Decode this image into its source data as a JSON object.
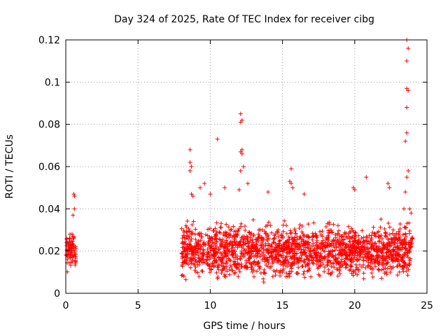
{
  "chart_data": {
    "type": "scatter",
    "title": "Day 324 of 2025, Rate Of TEC Index for receiver cibg",
    "xlabel": "GPS time / hours",
    "ylabel": "ROTI / TECUs",
    "xlim": [
      0,
      25
    ],
    "ylim": [
      0,
      0.12
    ],
    "x_ticks": [
      "0",
      "5",
      "10",
      "15",
      "20",
      "25"
    ],
    "y_ticks": [
      "0",
      "0.02",
      "0.04",
      "0.06",
      "0.08",
      "0.1",
      "0.12"
    ],
    "grid": true,
    "marker": "+",
    "color": "#ff0000",
    "density_segments": [
      {
        "x_start": 0.0,
        "x_end": 0.7,
        "y_min": 0.009,
        "y_max": 0.03
      },
      {
        "x_start": 8.0,
        "x_end": 24.0,
        "y_min": 0.004,
        "y_max": 0.035
      }
    ],
    "outliers": [
      [
        0.55,
        0.047
      ],
      [
        0.6,
        0.046
      ],
      [
        0.6,
        0.04
      ],
      [
        0.5,
        0.037
      ],
      [
        8.6,
        0.068
      ],
      [
        8.6,
        0.062
      ],
      [
        8.7,
        0.06
      ],
      [
        8.6,
        0.058
      ],
      [
        8.7,
        0.047
      ],
      [
        8.8,
        0.046
      ],
      [
        9.3,
        0.05
      ],
      [
        9.6,
        0.052
      ],
      [
        10.5,
        0.073
      ],
      [
        10.0,
        0.047
      ],
      [
        11.0,
        0.05
      ],
      [
        12.1,
        0.085
      ],
      [
        12.2,
        0.082
      ],
      [
        12.1,
        0.081
      ],
      [
        12.2,
        0.068
      ],
      [
        12.1,
        0.067
      ],
      [
        12.2,
        0.066
      ],
      [
        12.3,
        0.06
      ],
      [
        12.1,
        0.058
      ],
      [
        12.0,
        0.049
      ],
      [
        12.6,
        0.052
      ],
      [
        15.6,
        0.059
      ],
      [
        15.5,
        0.053
      ],
      [
        15.7,
        0.05
      ],
      [
        15.6,
        0.052
      ],
      [
        14.0,
        0.048
      ],
      [
        16.5,
        0.047
      ],
      [
        19.9,
        0.05
      ],
      [
        20.0,
        0.049
      ],
      [
        20.8,
        0.055
      ],
      [
        22.3,
        0.052
      ],
      [
        22.4,
        0.05
      ],
      [
        23.6,
        0.12
      ],
      [
        23.7,
        0.116
      ],
      [
        23.6,
        0.11
      ],
      [
        23.6,
        0.097
      ],
      [
        23.7,
        0.096
      ],
      [
        23.6,
        0.088
      ],
      [
        23.6,
        0.076
      ],
      [
        23.5,
        0.072
      ],
      [
        23.7,
        0.058
      ],
      [
        23.6,
        0.055
      ],
      [
        23.5,
        0.048
      ],
      [
        23.8,
        0.04
      ],
      [
        23.4,
        0.04
      ],
      [
        23.9,
        0.038
      ]
    ]
  }
}
